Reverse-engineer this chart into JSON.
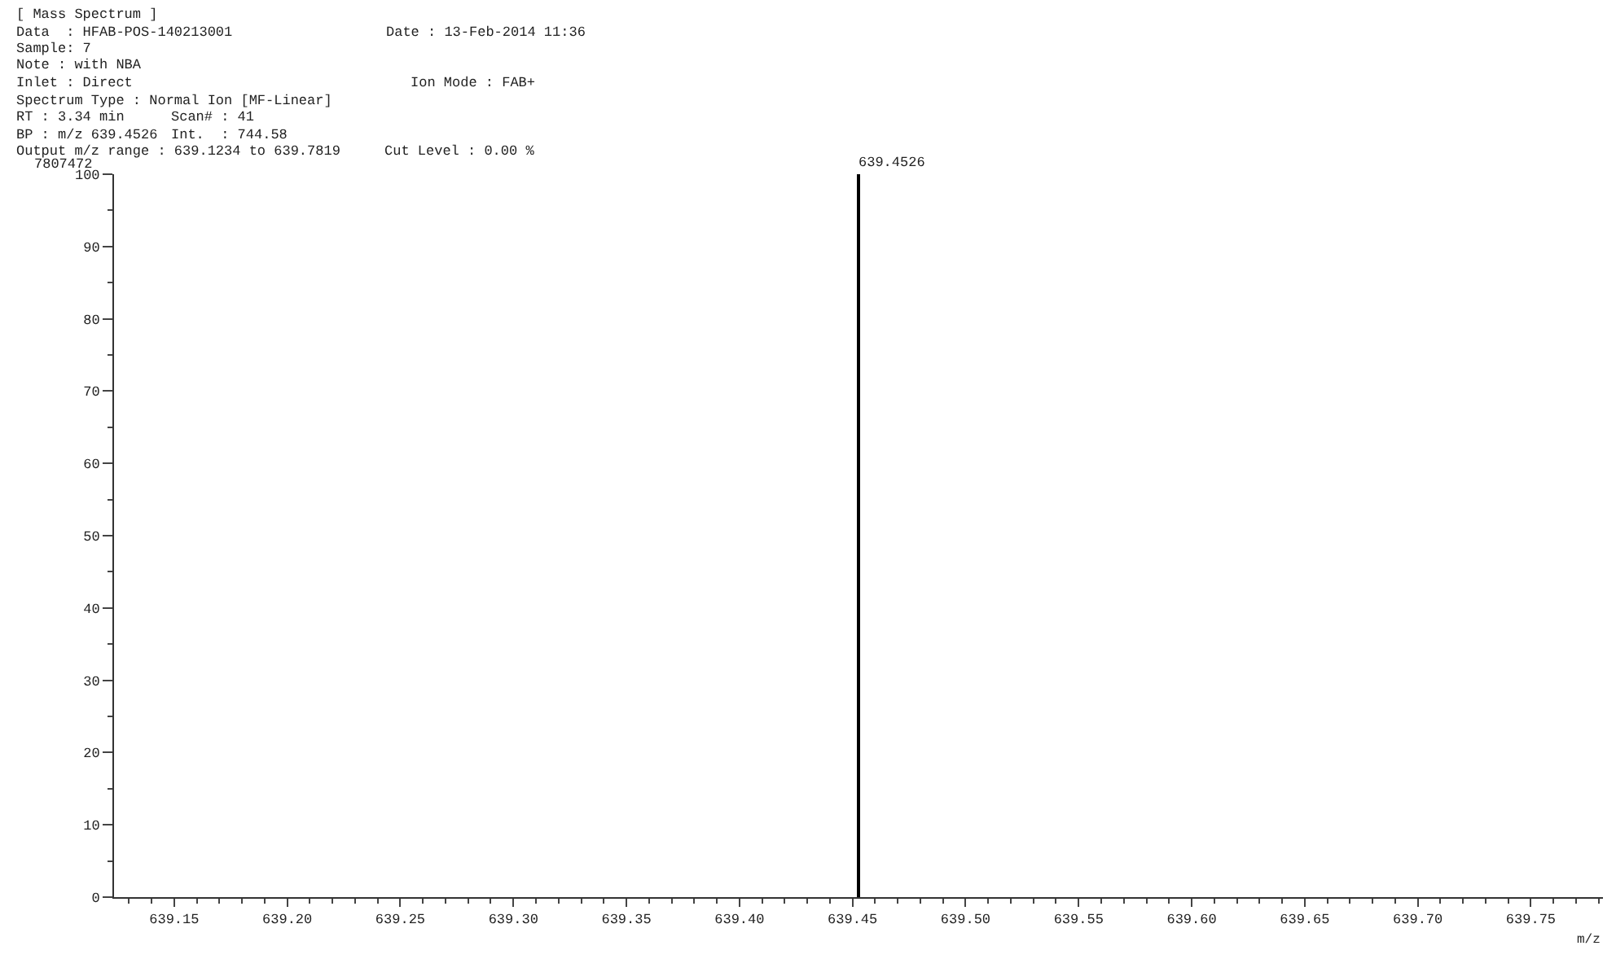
{
  "chart_data": {
    "type": "bar",
    "title": "[ Mass Spectrum ]",
    "xlabel": "m/z",
    "x": [
      639.4526
    ],
    "series": [
      {
        "color": "#000000",
        "values": [
          100
        ]
      }
    ],
    "xlim": [
      639.1234,
      639.7819
    ],
    "xticks": [
      639.15,
      {
        "value": 639.2,
        "label": "639.20"
      },
      639.25,
      {
        "value": 639.3,
        "label": "639.30"
      },
      639.35,
      {
        "value": 639.4,
        "label": "639.40"
      },
      639.45,
      {
        "value": 639.5,
        "label": "639.50"
      },
      639.55,
      {
        "value": 639.6,
        "label": "639.60"
      },
      639.65,
      {
        "value": 639.7,
        "label": "639.70"
      },
      639.75
    ],
    "ylim": [
      0,
      100
    ],
    "yticks": [
      0,
      10,
      20,
      30,
      40,
      50,
      60,
      70,
      80,
      90,
      100
    ],
    "annotations": [
      "Data  : HFAB-POS-140213001",
      "Date : 13-Feb-2014 11:36",
      "Sample: 7",
      "Note : with NBA",
      "Inlet : Direct",
      "Ion Mode : FAB+",
      "Spectrum Type : Normal Ion [MF-Linear]",
      "RT : 3.34 min",
      "Scan# : 41",
      "BP : m/z 639.4526",
      "Int.  : 744.58",
      "Output m/z range : 639.1234 to 639.7819",
      "Cut Level : 0.00 %",
      "7807472",
      {
        "text": "639.4526",
        "x": 639.4526,
        "y": 100
      }
    ]
  }
}
